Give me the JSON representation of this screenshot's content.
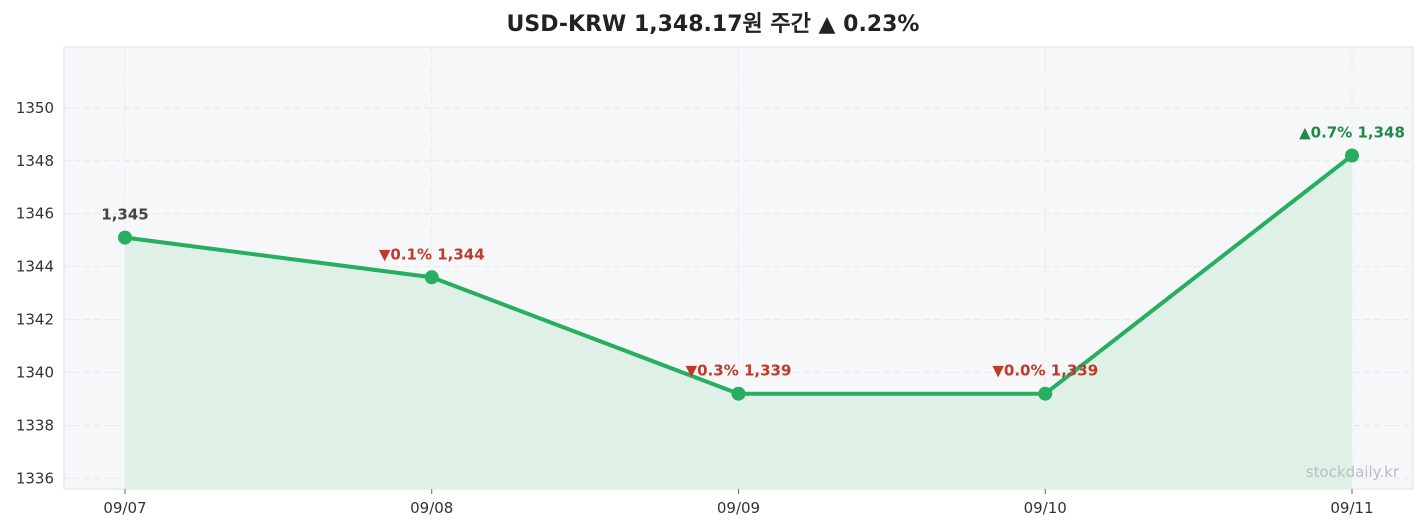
{
  "chart_data": {
    "type": "line",
    "title": "USD-KRW 1,348.17원 주간 ▲ 0.23%",
    "x": [
      "09/07",
      "09/08",
      "09/09",
      "09/10",
      "09/11"
    ],
    "series": [
      {
        "values": [
          1345.1,
          1343.6,
          1339.2,
          1339.2,
          1348.2
        ]
      }
    ],
    "point_labels": [
      "1,345",
      "▼0.1% 1,344",
      "▼0.3% 1,339",
      "▼0.0% 1,339",
      "▲0.7% 1,348"
    ],
    "label_colors": [
      "#444444",
      "#c0392b",
      "#c0392b",
      "#c0392b",
      "#1e8a48"
    ],
    "yticks": [
      1336,
      1338,
      1340,
      1342,
      1344,
      1346,
      1348,
      1350
    ],
    "ylim": [
      1335.6,
      1352.3
    ],
    "grid": true,
    "line_color": "#27ae60",
    "fill_color": "#dff0e6",
    "plot_bg": "#f6f7f9",
    "watermark": "stockdaily.kr"
  }
}
